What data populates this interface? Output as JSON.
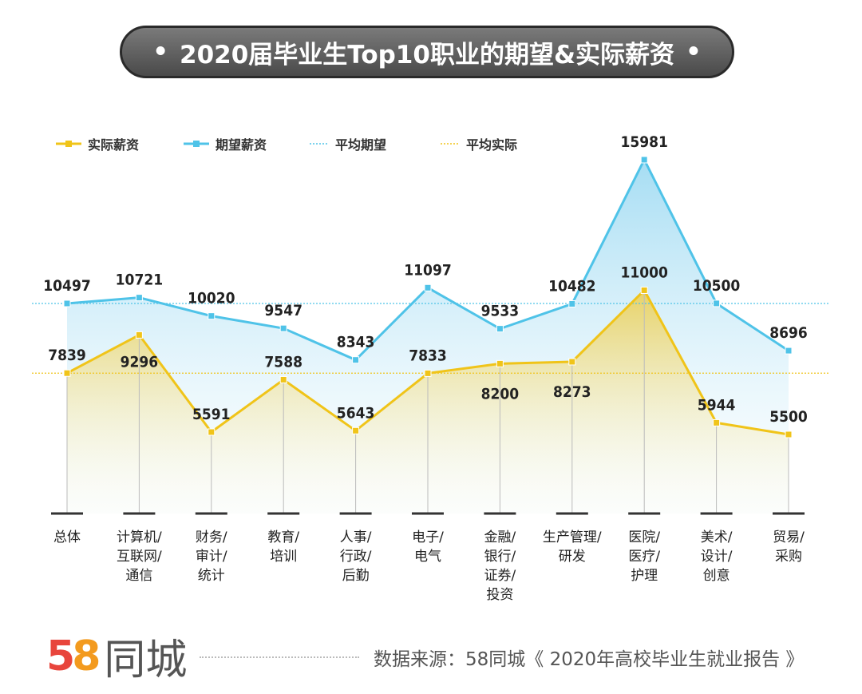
{
  "title": "2020届毕业生Top10职业的期望&实际薪资",
  "title_bullet": "•",
  "chart_data": {
    "type": "line",
    "title": "2020届毕业生Top10职业的期望&实际薪资",
    "categories": [
      [
        "总体"
      ],
      [
        "计算机/",
        "互联网/",
        "通信"
      ],
      [
        "财务/",
        "审计/",
        "统计"
      ],
      [
        "教育/",
        "培训"
      ],
      [
        "人事/",
        "行政/",
        "后勤"
      ],
      [
        "电子/",
        "电气"
      ],
      [
        "金融/",
        "银行/",
        "证券/",
        "投资"
      ],
      [
        "生产管理/",
        "研发"
      ],
      [
        "医院/",
        "医疗/",
        "护理"
      ],
      [
        "美术/",
        "设计/",
        "创意"
      ],
      [
        "贸易/",
        "采购"
      ]
    ],
    "series": [
      {
        "name": "实际薪资",
        "color": "#f0c419",
        "values": [
          7839,
          9296,
          5591,
          7588,
          5643,
          7833,
          8200,
          8273,
          11000,
          5944,
          5500
        ]
      },
      {
        "name": "期望薪资",
        "color": "#4fc3e8",
        "values": [
          10497,
          10721,
          10020,
          9547,
          8343,
          11097,
          9533,
          10482,
          15981,
          10500,
          8696
        ]
      }
    ],
    "reference_lines": [
      {
        "name": "平均期望",
        "value": 10497,
        "color": "#4fc3e8",
        "style": "dotted"
      },
      {
        "name": "平均实际",
        "value": 7839,
        "color": "#f0c419",
        "style": "dotted"
      }
    ],
    "legend_position": "top-left",
    "grid": false
  },
  "footer": {
    "logo_5": "5",
    "logo_8": "8",
    "logo_text": "同城",
    "source": "数据来源：58同城《 2020年高校毕业生就业报告 》"
  }
}
